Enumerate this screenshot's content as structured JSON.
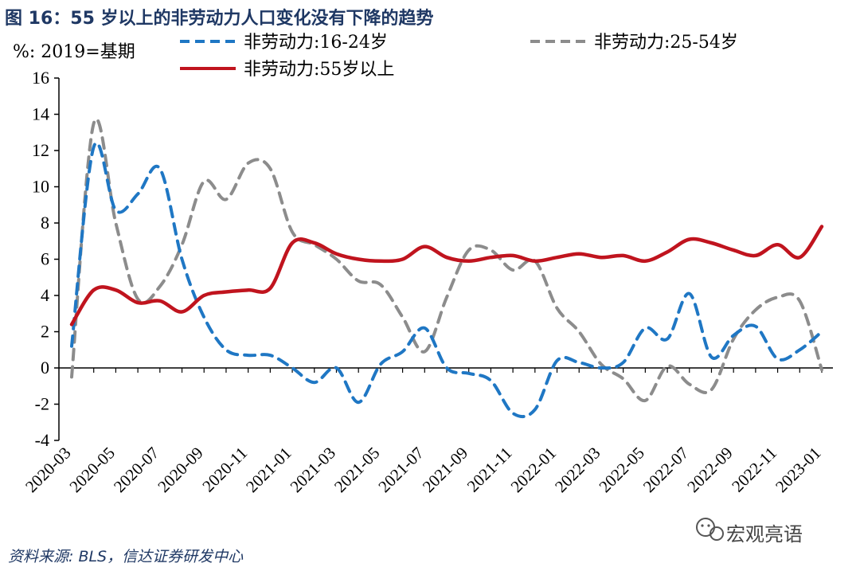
{
  "figure": {
    "title": "图 16：55 岁以上的非劳动力人口变化没有下降的趋势",
    "unit_label": "%: 2019=基期",
    "source": "资料来源: BLS，信达证券研发中心",
    "watermark": "宏观亮语",
    "watermark_icon": "wechat-icon",
    "title_color": "#1f3864"
  },
  "chart_data": {
    "type": "line",
    "title": "图 16：55 岁以上的非劳动力人口变化没有下降的趋势",
    "ylabel": "%: 2019=基期",
    "xlabel": "",
    "ylim": [
      -4,
      16
    ],
    "yticks": [
      "-4",
      "-2",
      "0",
      "2",
      "4",
      "6",
      "8",
      "10",
      "12",
      "14",
      "16"
    ],
    "grid": false,
    "legend": "top",
    "categories": [
      "2020-03",
      "2020-04",
      "2020-05",
      "2020-06",
      "2020-07",
      "2020-08",
      "2020-09",
      "2020-10",
      "2020-11",
      "2020-12",
      "2021-01",
      "2021-02",
      "2021-03",
      "2021-04",
      "2021-05",
      "2021-06",
      "2021-07",
      "2021-08",
      "2021-09",
      "2021-10",
      "2021-11",
      "2021-12",
      "2022-01",
      "2022-02",
      "2022-03",
      "2022-04",
      "2022-05",
      "2022-06",
      "2022-07",
      "2022-08",
      "2022-09",
      "2022-10",
      "2022-11",
      "2022-12",
      "2023-01"
    ],
    "xtick_labels": [
      "2020-03",
      "2020-05",
      "2020-07",
      "2020-09",
      "2020-11",
      "2021-01",
      "2021-03",
      "2021-05",
      "2021-07",
      "2021-09",
      "2021-11",
      "2022-01",
      "2022-03",
      "2022-05",
      "2022-07",
      "2022-09",
      "2022-11",
      "2023-01"
    ],
    "series": [
      {
        "name": "非劳动力:16-24岁",
        "color": "#1f77c4",
        "style": "dashed",
        "values": [
          1.2,
          12.2,
          8.7,
          9.6,
          11.0,
          6.0,
          2.8,
          1.0,
          0.7,
          0.7,
          0.0,
          -0.8,
          0.0,
          -1.9,
          0.2,
          0.9,
          2.2,
          0.0,
          -0.3,
          -0.7,
          -2.5,
          -2.3,
          0.4,
          0.3,
          0.0,
          0.3,
          2.2,
          1.6,
          4.1,
          0.6,
          1.8,
          2.3,
          0.5,
          1.0,
          2.0
        ]
      },
      {
        "name": "非劳动力:25-54岁",
        "color": "#8c8c8c",
        "style": "dashed",
        "values": [
          -0.5,
          13.5,
          8.0,
          3.8,
          4.5,
          6.8,
          10.3,
          9.3,
          11.3,
          11.0,
          7.5,
          6.8,
          6.0,
          4.8,
          4.6,
          2.8,
          0.9,
          3.9,
          6.5,
          6.5,
          5.4,
          5.9,
          3.3,
          2.0,
          0.2,
          -0.6,
          -1.8,
          0.1,
          -0.9,
          -1.2,
          1.6,
          3.2,
          3.9,
          3.7,
          -0.1
        ]
      },
      {
        "name": "非劳动力:55岁以上",
        "color": "#c0141e",
        "style": "solid",
        "values": [
          2.4,
          4.3,
          4.3,
          3.6,
          3.7,
          3.1,
          4.0,
          4.2,
          4.3,
          4.4,
          6.9,
          6.9,
          6.3,
          6.0,
          5.9,
          6.0,
          6.7,
          6.1,
          5.9,
          6.1,
          6.2,
          5.9,
          6.1,
          6.3,
          6.1,
          6.2,
          5.9,
          6.4,
          7.1,
          6.9,
          6.5,
          6.2,
          6.8,
          6.1,
          7.8
        ]
      }
    ]
  }
}
